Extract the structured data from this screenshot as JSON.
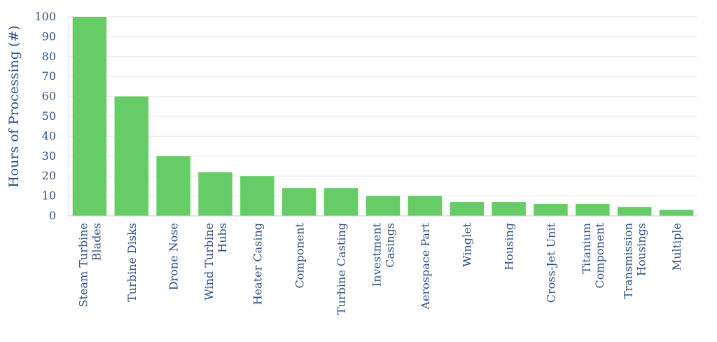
{
  "chart_data": {
    "type": "bar",
    "title": "",
    "xlabel": "",
    "ylabel": "Hours of Processing (#)",
    "ylim": [
      0,
      100
    ],
    "yticks": [
      0,
      10,
      20,
      30,
      40,
      50,
      60,
      70,
      80,
      90,
      100
    ],
    "grid": true,
    "legend": "none",
    "bar_color": "#66cc66",
    "categories": [
      [
        "Steam Turbine",
        "Blades"
      ],
      [
        "Turbine Disks"
      ],
      [
        "Drone Nose"
      ],
      [
        "Wind Turbine",
        "Hubs"
      ],
      [
        "Heater Casing"
      ],
      [
        "Component"
      ],
      [
        "Turbine Casting"
      ],
      [
        "Investment",
        "Casings"
      ],
      [
        "Aerospace Part"
      ],
      [
        "Winglet"
      ],
      [
        "Housing"
      ],
      [
        "Cross-Jet Unit"
      ],
      [
        "Titanium",
        "Component"
      ],
      [
        "Transmission",
        "Housings"
      ],
      [
        "Multiple"
      ]
    ],
    "values": [
      100,
      60,
      30,
      22,
      20,
      14,
      14,
      10,
      10,
      7,
      7,
      6,
      6,
      4.5,
      3
    ]
  }
}
